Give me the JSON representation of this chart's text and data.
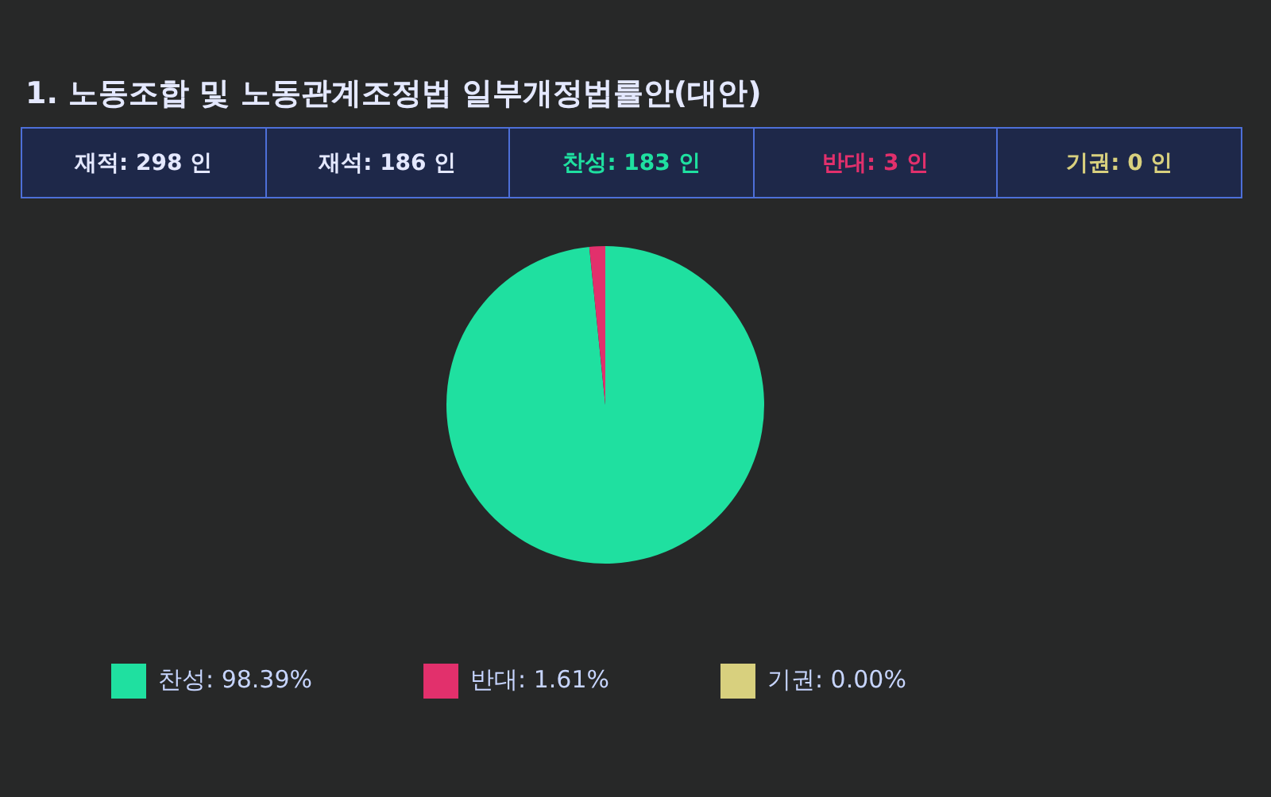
{
  "chart_data": {
    "type": "pie",
    "title": "1. 노동조합 및 노동관계조정법 일부개정법률안(대안)",
    "annotations": [
      "재적: 298 인",
      "재석: 186 인",
      "찬성: 183 인",
      "반대: 3 인",
      "기권: 0 인"
    ],
    "categories": [
      "찬성",
      "반대",
      "기권"
    ],
    "values": [
      98.39,
      1.61,
      0
    ],
    "value_labels": [
      "98.39%",
      "1.61%",
      "0.00%"
    ],
    "colors": [
      "#1fe0a0",
      "#e2306c",
      "#d8d07e"
    ],
    "legend": "bottom"
  }
}
